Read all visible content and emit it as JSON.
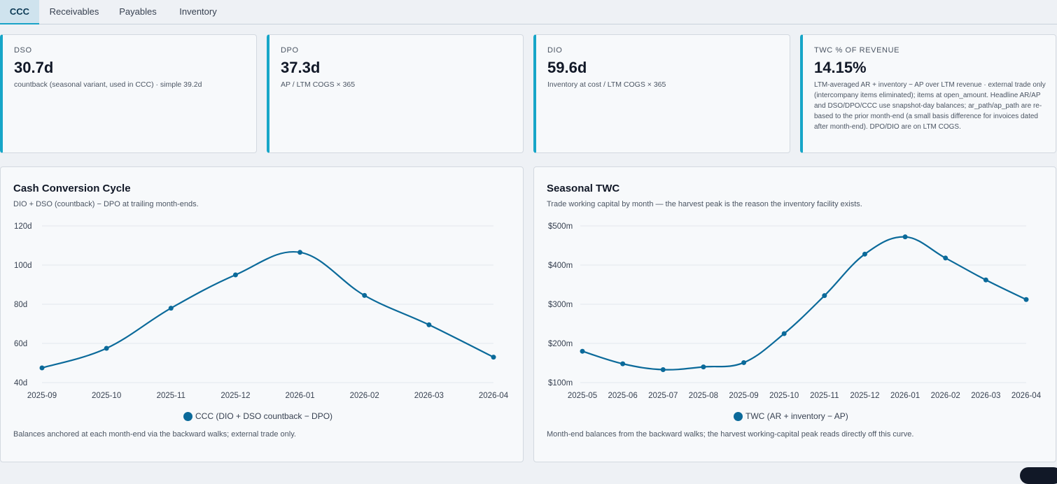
{
  "tabs": [
    {
      "label": "CCC",
      "active": true
    },
    {
      "label": "Receivables",
      "active": false
    },
    {
      "label": "Payables",
      "active": false
    },
    {
      "label": "Inventory",
      "active": false
    }
  ],
  "kpis": [
    {
      "label": "DSO",
      "value": "30.7d",
      "sub": "countback (seasonal variant, used in CCC) · simple 39.2d"
    },
    {
      "label": "DPO",
      "value": "37.3d",
      "sub": "AP / LTM COGS × 365"
    },
    {
      "label": "DIO",
      "value": "59.6d",
      "sub": "Inventory at cost / LTM COGS × 365"
    },
    {
      "label": "TWC % of revenue",
      "value": "14.15%",
      "sub": "LTM-averaged AR + inventory − AP over LTM revenue · external trade only (intercompany items eliminated); items at open_amount. Headline AR/AP and DSO/DPO/CCC use snapshot-day balances; ar_path/ap_path are re-based to the prior month-end (a small basis difference for invoices dated after month-end). DPO/DIO are on LTM COGS."
    }
  ],
  "panels": {
    "ccc": {
      "title": "Cash Conversion Cycle",
      "subtitle": "DIO + DSO (countback) − DPO at trailing month-ends.",
      "legend": "CCC (DIO + DSO countback − DPO)",
      "footer": "Balances anchored at each month-end via the backward walks; external trade only."
    },
    "twc": {
      "title": "Seasonal TWC",
      "subtitle": "Trade working capital by month — the harvest peak is the reason the inventory facility exists.",
      "legend": "TWC (AR + inventory − AP)",
      "footer": "Month-end balances from the backward walks; the harvest working-capital peak reads directly off this curve."
    }
  },
  "chart_data": [
    {
      "type": "line",
      "title": "Cash Conversion Cycle",
      "x": [
        "2025-09",
        "2025-10",
        "2025-11",
        "2025-12",
        "2026-01",
        "2026-02",
        "2026-03",
        "2026-04"
      ],
      "series": [
        {
          "name": "CCC (DIO + DSO countback − DPO)",
          "values": [
            47.5,
            57.5,
            78,
            95,
            106.5,
            84.5,
            69.5,
            53
          ]
        }
      ],
      "ylim": [
        40,
        120
      ],
      "yticks": [
        40,
        60,
        80,
        100,
        120
      ],
      "ytick_labels": [
        "40d",
        "60d",
        "80d",
        "100d",
        "120d"
      ],
      "grid": true,
      "legend": "bottom-center",
      "color": "#0b6a9a"
    },
    {
      "type": "line",
      "title": "Seasonal TWC",
      "x": [
        "2025-05",
        "2025-06",
        "2025-07",
        "2025-08",
        "2025-09",
        "2025-10",
        "2025-11",
        "2025-12",
        "2026-01",
        "2026-02",
        "2026-03",
        "2026-04"
      ],
      "series": [
        {
          "name": "TWC (AR + inventory − AP)",
          "values": [
            180,
            148,
            133,
            140,
            151,
            225,
            322,
            428,
            472,
            418,
            362,
            312
          ]
        }
      ],
      "ylim": [
        100,
        500
      ],
      "yticks": [
        100,
        200,
        300,
        400,
        500
      ],
      "ytick_labels": [
        "$100m",
        "$200m",
        "$300m",
        "$400m",
        "$500m"
      ],
      "grid": true,
      "legend": "bottom-center",
      "color": "#0b6a9a"
    }
  ]
}
